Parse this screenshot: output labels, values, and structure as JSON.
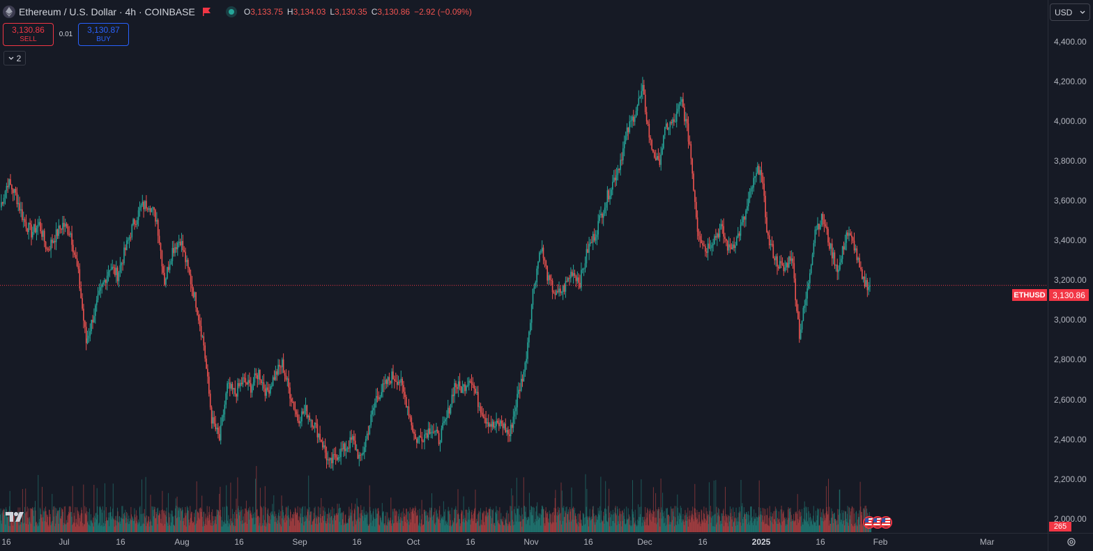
{
  "header": {
    "symbol_title": "Ethereum / U.S. Dollar · 4h · COINBASE",
    "ohlc": {
      "o_label": "O",
      "o": "3,133.75",
      "h_label": "H",
      "h": "3,134.03",
      "l_label": "L",
      "l": "3,130.35",
      "c_label": "C",
      "c": "3,130.86",
      "change": "−2.92 (−0.09%)"
    }
  },
  "trade": {
    "sell_price": "3,130.86",
    "sell_label": "SELL",
    "spread": "0.01",
    "buy_price": "3,130.87",
    "buy_label": "BUY"
  },
  "indicators_toggle": {
    "count": "2"
  },
  "currency": {
    "selected": "USD"
  },
  "price_scale": {
    "labels": [
      "4,400.00",
      "4,200.00",
      "4,000.00",
      "3,800.00",
      "3,600.00",
      "3,400.00",
      "3,200.00",
      "3,000.00",
      "2,800.00",
      "2,600.00",
      "2,400.00",
      "2,200.00",
      "2,000.00"
    ],
    "current_price": "3,130.86",
    "symbol_tag": "ETHUSD",
    "volume_tag": "265"
  },
  "time_scale": {
    "labels": [
      {
        "text": "16",
        "bold": false
      },
      {
        "text": "Jul",
        "bold": false
      },
      {
        "text": "16",
        "bold": false
      },
      {
        "text": "Aug",
        "bold": false
      },
      {
        "text": "16",
        "bold": false
      },
      {
        "text": "Sep",
        "bold": false
      },
      {
        "text": "16",
        "bold": false
      },
      {
        "text": "Oct",
        "bold": false
      },
      {
        "text": "16",
        "bold": false
      },
      {
        "text": "Nov",
        "bold": false
      },
      {
        "text": "16",
        "bold": false
      },
      {
        "text": "Dec",
        "bold": false
      },
      {
        "text": "16",
        "bold": false
      },
      {
        "text": "2025",
        "bold": true
      },
      {
        "text": "16",
        "bold": false
      },
      {
        "text": "Feb",
        "bold": false
      },
      {
        "text": "Mar",
        "bold": false
      }
    ]
  },
  "colors": {
    "up": "#26a69a",
    "down": "#ef5350",
    "background": "#161a25",
    "sell": "#f23645",
    "buy": "#2962ff"
  },
  "chart_data": {
    "type": "line",
    "series": [
      {
        "values": [
          3500,
          3620,
          3560,
          3440,
          3380,
          3420,
          3300,
          3360,
          3420,
          3380,
          3180,
          2860,
          3000,
          3120,
          3220,
          3180,
          3300,
          3420,
          3500,
          3520,
          3440,
          3150,
          3300,
          3350,
          3200,
          3050,
          2850,
          2500,
          2400,
          2650,
          2620,
          2680,
          2650,
          2720,
          2620,
          2700,
          2760,
          2620,
          2500,
          2540,
          2480,
          2400,
          2280,
          2330,
          2360,
          2400,
          2300,
          2450,
          2600,
          2650,
          2700,
          2680,
          2560,
          2400,
          2420,
          2460,
          2400,
          2500,
          2660,
          2640,
          2700,
          2580,
          2500,
          2460,
          2480,
          2420,
          2600,
          2750,
          3100,
          3320,
          3150,
          3080,
          3120,
          3200,
          3150,
          3300,
          3380,
          3500,
          3600,
          3700,
          3850,
          3950,
          4050,
          3800,
          3700,
          3880,
          3900,
          4000,
          3800,
          3400,
          3300,
          3350,
          3400,
          3300,
          3350,
          3450,
          3600,
          3700,
          3350,
          3250,
          3200,
          3280,
          2900,
          3100,
          3400,
          3450,
          3300,
          3200,
          3380,
          3320,
          3150,
          3130
        ]
      }
    ],
    "ylim": [
      1960,
      4480
    ]
  }
}
